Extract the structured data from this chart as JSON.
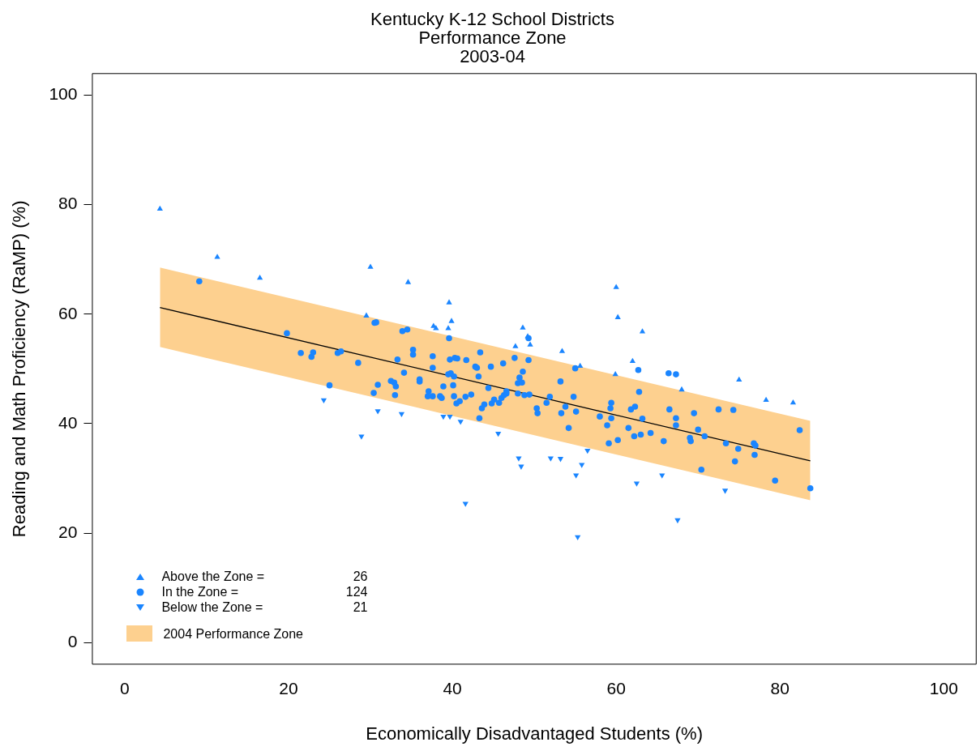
{
  "chart_data": {
    "type": "scatter",
    "title": "Kentucky K-12 School Districts\nPerformance Zone\n2003-04",
    "xlabel": "Economically Disadvantaged Students (%)",
    "ylabel": "Reading and Math Proficiency (RaMP) (%)",
    "xlim": [
      -4,
      104
    ],
    "xticks": [
      0,
      20,
      40,
      60,
      80,
      100
    ],
    "ylim": [
      -4,
      104
    ],
    "yticks": [
      0,
      20,
      40,
      60,
      80,
      100
    ],
    "grid": false,
    "legend": "bottom left",
    "series": [
      {
        "name": "2004 Performance Zone",
        "type": "line",
        "color": "#000000",
        "x": [
          4.3,
          83.7
        ],
        "values": [
          61.2,
          33.2
        ],
        "lower": [
          54.0,
          26.0
        ],
        "upper": [
          68.5,
          40.5
        ],
        "marker": "none"
      },
      {
        "name": "Above the Zone = 26",
        "color": "#1a85ff",
        "marker": "triangle",
        "x": [
          4.3,
          11.3,
          16.5,
          30.0,
          34.6,
          29.5,
          37.7,
          38.0,
          39.5,
          39.9,
          39.6,
          48.6,
          49.2,
          49.5,
          47.7,
          53.4,
          60.0,
          60.2,
          55.6,
          59.9,
          62.0,
          63.2,
          68.0,
          75.0,
          78.3,
          81.6
        ],
        "values": [
          79.2,
          70.4,
          66.6,
          68.6,
          65.8,
          59.7,
          57.8,
          57.4,
          57.4,
          58.7,
          62.1,
          57.5,
          55.9,
          54.4,
          54.1,
          53.2,
          64.9,
          59.4,
          50.5,
          49.0,
          51.4,
          56.8,
          46.2,
          48.0,
          44.3,
          43.8
        ]
      },
      {
        "name": "In the Zone = 124",
        "color": "#1a85ff",
        "marker": "circle",
        "x": [
          9.1,
          19.8,
          21.5,
          22.8,
          23.0,
          26.0,
          26.4,
          25.0,
          28.5,
          30.7,
          30.5,
          30.4,
          30.9,
          33.9,
          34.5,
          35.2,
          35.2,
          33.3,
          34.1,
          36.0,
          36.0,
          32.5,
          32.9,
          33.1,
          33.0,
          37.1,
          37.0,
          37.6,
          37.6,
          37.6,
          38.5,
          38.9,
          38.7,
          39.6,
          39.7,
          39.5,
          39.8,
          40.1,
          40.2,
          40.3,
          40.6,
          40.5,
          40.9,
          41.6,
          41.7,
          42.3,
          42.8,
          43.0,
          43.2,
          43.4,
          43.6,
          43.3,
          43.9,
          44.4,
          44.7,
          44.8,
          45.1,
          45.7,
          46.0,
          46.3,
          46.6,
          46.2,
          46.6,
          47.6,
          48.0,
          48.0,
          48.2,
          48.5,
          48.6,
          48.8,
          49.3,
          49.3,
          49.4,
          50.3,
          50.4,
          51.5,
          51.9,
          53.2,
          53.3,
          53.8,
          54.2,
          54.8,
          55.0,
          55.1,
          58.0,
          58.9,
          59.3,
          59.1,
          59.4,
          59.4,
          60.2,
          61.5,
          61.8,
          62.2,
          62.3,
          62.7,
          62.8,
          63.0,
          63.2,
          64.2,
          65.8,
          66.4,
          66.5,
          67.3,
          67.3,
          67.3,
          69.5,
          69.0,
          69.1,
          70.0,
          70.4,
          70.8,
          72.5,
          73.4,
          74.3,
          74.5,
          74.9,
          76.8,
          77.0,
          76.9,
          79.4,
          82.4,
          83.7,
          40.2
        ],
        "values": [
          66.0,
          56.5,
          52.9,
          52.2,
          53.0,
          52.9,
          53.2,
          47.0,
          51.1,
          58.5,
          58.4,
          45.6,
          47.1,
          56.9,
          57.2,
          53.5,
          52.6,
          51.7,
          49.3,
          48.1,
          47.7,
          47.8,
          47.5,
          46.8,
          45.2,
          45.9,
          45.0,
          45.0,
          52.3,
          50.2,
          45.0,
          46.8,
          44.7,
          55.6,
          51.7,
          49.0,
          49.2,
          47.0,
          45.0,
          52.0,
          51.9,
          43.7,
          44.1,
          44.9,
          51.6,
          45.3,
          50.4,
          50.2,
          48.6,
          53.0,
          42.8,
          41.0,
          43.5,
          46.5,
          50.4,
          43.7,
          44.4,
          43.8,
          44.7,
          45.2,
          45.9,
          51.0,
          45.5,
          52.0,
          47.4,
          45.5,
          48.4,
          47.5,
          49.5,
          45.2,
          55.6,
          51.6,
          45.3,
          42.8,
          41.9,
          43.8,
          44.9,
          47.7,
          41.9,
          43.1,
          39.2,
          44.9,
          50.1,
          42.2,
          41.3,
          39.7,
          42.8,
          36.4,
          41.0,
          43.8,
          37.0,
          39.2,
          42.6,
          37.7,
          43.1,
          49.8,
          45.8,
          38.0,
          40.9,
          38.3,
          36.8,
          49.2,
          42.6,
          49.0,
          41.0,
          39.7,
          41.9,
          37.4,
          36.8,
          38.9,
          31.6,
          37.7,
          42.6,
          36.4,
          42.5,
          33.1,
          35.4,
          36.4,
          36.0,
          34.3,
          29.6,
          38.8,
          28.2,
          48.6
        ]
      },
      {
        "name": "Below the Zone = 21",
        "color": "#1a85ff",
        "marker": "triangle-down",
        "x": [
          24.3,
          28.9,
          30.9,
          33.8,
          38.9,
          39.7,
          41.0,
          41.6,
          45.6,
          48.1,
          48.4,
          52.0,
          53.2,
          55.1,
          55.3,
          55.8,
          56.5,
          62.5,
          65.6,
          67.5,
          73.3
        ],
        "values": [
          44.3,
          37.7,
          42.3,
          41.8,
          41.3,
          41.3,
          40.4,
          25.4,
          38.2,
          33.7,
          32.2,
          33.7,
          33.6,
          30.6,
          19.3,
          32.5,
          35.1,
          29.1,
          30.6,
          22.4,
          27.8
        ]
      }
    ]
  }
}
